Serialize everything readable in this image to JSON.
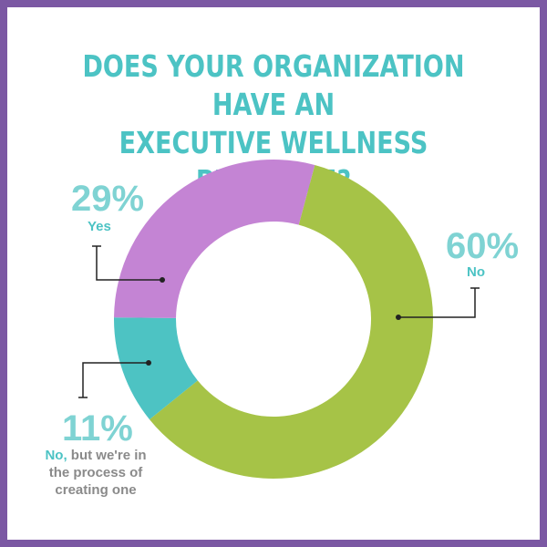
{
  "title_line1": "DOES YOUR ORGANIZATION HAVE AN",
  "title_line2": "EXECUTIVE WELLNESS PROGRAM?",
  "chart_data": {
    "type": "pie",
    "donut": true,
    "title": "Does your organization have an executive wellness program?",
    "categories": [
      "No",
      "No, but we're in the process of creating one",
      "Yes"
    ],
    "values": [
      60,
      11,
      29
    ],
    "colors": [
      "#a6c347",
      "#4dc3c3",
      "#c484d4"
    ],
    "labels": [
      {
        "pct": "60%",
        "label": "No"
      },
      {
        "pct": "11%",
        "label": "No,",
        "rest_lines": [
          "but we're in",
          "the process of",
          "creating one"
        ]
      },
      {
        "pct": "29%",
        "label": "Yes"
      }
    ]
  },
  "colors": {
    "frame": "#7b58a3",
    "title": "#4cc3c4"
  }
}
